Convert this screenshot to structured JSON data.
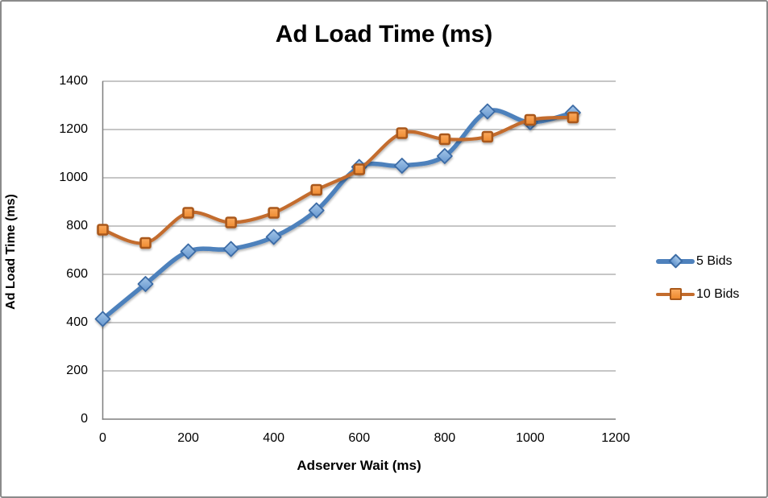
{
  "window": {
    "border_color": "#8B8B8B",
    "background_color": "#FFFFFF"
  },
  "chart_data": {
    "type": "line",
    "title": "Ad Load Time (ms)",
    "xlabel": "Adserver Wait (ms)",
    "ylabel": "Ad Load Time (ms)",
    "x": [
      0,
      100,
      200,
      300,
      400,
      500,
      600,
      700,
      800,
      900,
      1000,
      1100
    ],
    "series": [
      {
        "name": "5 Bids",
        "marker": "diamond",
        "line_color": "#4E81BC",
        "marker_fill_top": "#A4C6E9",
        "marker_fill_bottom": "#6596CE",
        "marker_stroke": "#3A6BA5",
        "values": [
          415,
          560,
          695,
          705,
          755,
          865,
          1045,
          1050,
          1090,
          1275,
          1230,
          1270
        ]
      },
      {
        "name": "10 Bids",
        "marker": "square",
        "line_color": "#C36C2D",
        "marker_fill_top": "#FBAA5F",
        "marker_fill_bottom": "#EE8A2F",
        "marker_stroke": "#A9591B",
        "values": [
          785,
          730,
          855,
          815,
          855,
          950,
          1035,
          1185,
          1160,
          1170,
          1240,
          1250
        ]
      }
    ],
    "xlim": [
      0,
      1200
    ],
    "ylim": [
      0,
      1400
    ],
    "x_ticks": [
      0,
      200,
      400,
      600,
      800,
      1000,
      1200
    ],
    "y_ticks": [
      0,
      200,
      400,
      600,
      800,
      1000,
      1200,
      1400
    ],
    "grid": true,
    "gridline_color": "#A3A3A3",
    "axis_color": "#7F7F7F",
    "smooth": true,
    "legend_position": "right"
  }
}
